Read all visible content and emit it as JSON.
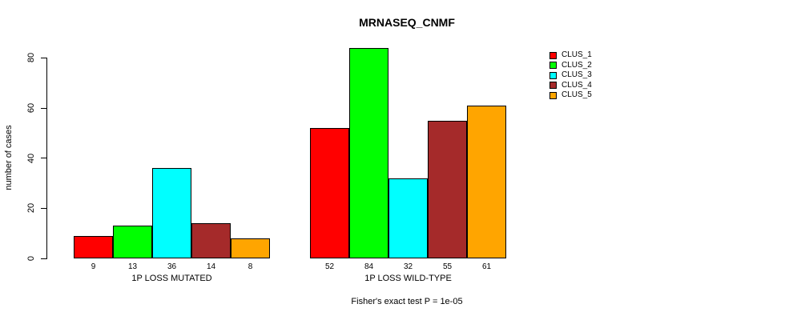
{
  "chart_data": {
    "type": "bar",
    "title": "MRNASEQ_CNMF",
    "ylabel": "number of cases",
    "xlabel": "",
    "yticks": [
      0,
      20,
      40,
      60,
      80
    ],
    "ylim": [
      0,
      80
    ],
    "grid": false,
    "legend_position": "right-outside",
    "series": [
      {
        "name": "CLUS_1",
        "color": "#FF0000"
      },
      {
        "name": "CLUS_2",
        "color": "#00FF00"
      },
      {
        "name": "CLUS_3",
        "color": "#00FFFF"
      },
      {
        "name": "CLUS_4",
        "color": "#A52A2A"
      },
      {
        "name": "CLUS_5",
        "color": "#FFA500"
      }
    ],
    "groups": [
      {
        "label": "1P LOSS MUTATED",
        "values": [
          9,
          13,
          36,
          14,
          8
        ]
      },
      {
        "label": "1P LOSS WILD-TYPE",
        "values": [
          52,
          84,
          32,
          55,
          61
        ]
      }
    ],
    "footnote": "Fisher's exact test P = 1e-05"
  }
}
